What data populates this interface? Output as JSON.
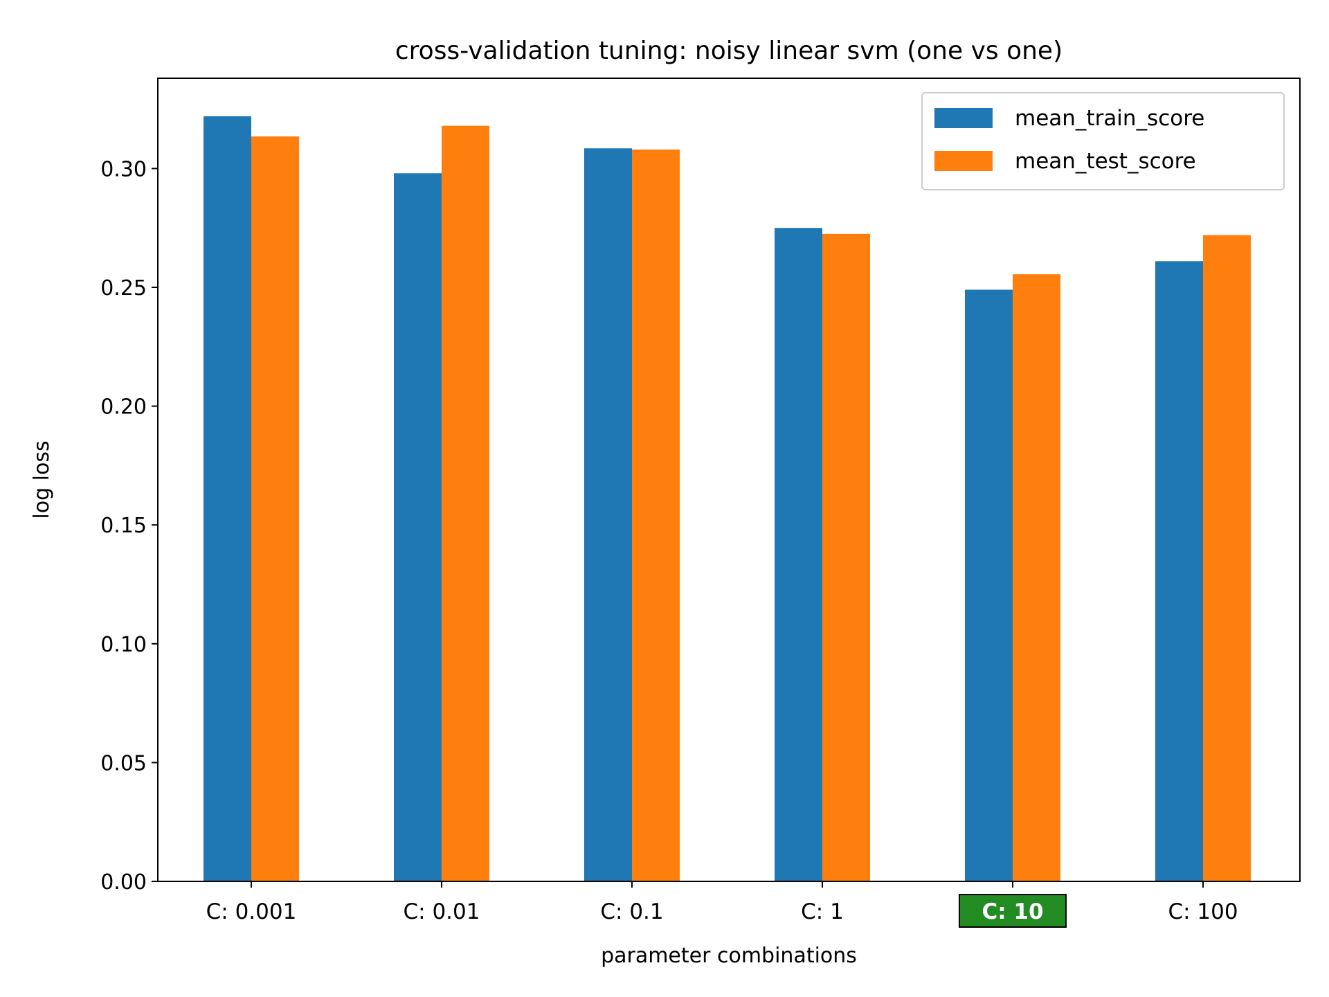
{
  "chart_data": {
    "type": "bar",
    "title": "cross-validation tuning: noisy linear svm (one vs one)",
    "xlabel": "parameter combinations",
    "ylabel": "log loss",
    "categories": [
      "C: 0.001",
      "C: 0.01",
      "C: 0.1",
      "C: 1",
      "C: 10",
      "C: 100"
    ],
    "highlighted_category": "C: 10",
    "series": [
      {
        "name": "mean_train_score",
        "color": "#1f77b4",
        "values": [
          0.322,
          0.298,
          0.3085,
          0.275,
          0.249,
          0.261
        ]
      },
      {
        "name": "mean_test_score",
        "color": "#ff7f0e",
        "values": [
          0.3135,
          0.318,
          0.308,
          0.2725,
          0.2555,
          0.272
        ]
      }
    ],
    "ylim": [
      0,
      0.338
    ],
    "yticks": [
      "0.00",
      "0.05",
      "0.10",
      "0.15",
      "0.20",
      "0.25",
      "0.30"
    ],
    "legend_position": "top-right",
    "grid": false,
    "highlight_color": "#228b22"
  }
}
